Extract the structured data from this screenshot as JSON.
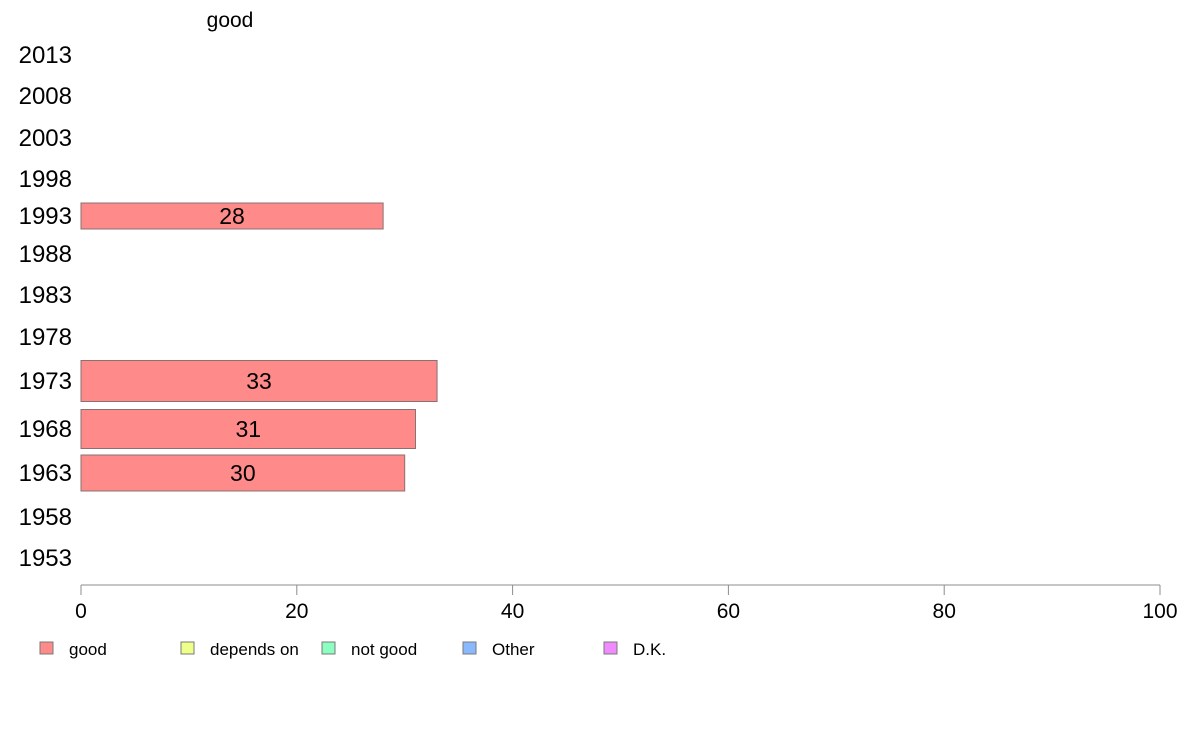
{
  "chart_data": {
    "type": "bar",
    "orientation": "horizontal",
    "title": "",
    "column_header": "good",
    "xlabel": "",
    "ylabel": "",
    "xlim": [
      0,
      100
    ],
    "x_ticks": [
      "0",
      "20",
      "40",
      "60",
      "80",
      "100"
    ],
    "grid": false,
    "categories": [
      "2013",
      "2008",
      "2003",
      "1998",
      "1993",
      "1988",
      "1983",
      "1978",
      "1973",
      "1968",
      "1963",
      "1958",
      "1953"
    ],
    "series": [
      {
        "name": "good",
        "color": "#ff8a8a",
        "values": [
          null,
          null,
          null,
          null,
          28,
          null,
          null,
          null,
          33,
          31,
          30,
          null,
          null
        ],
        "labels": [
          "",
          "",
          "",
          "",
          "28",
          "",
          "",
          "",
          "33",
          "31",
          "30",
          "",
          ""
        ]
      }
    ],
    "legend_position": "bottom",
    "legend": [
      {
        "label": "good",
        "color": "#ff8a8a"
      },
      {
        "label": "depends on",
        "color": "#eeff8a"
      },
      {
        "label": "not good",
        "color": "#8affc0"
      },
      {
        "label": "Other",
        "color": "#8ab8ff"
      },
      {
        "label": "D.K.",
        "color": "#f08aff"
      }
    ]
  }
}
